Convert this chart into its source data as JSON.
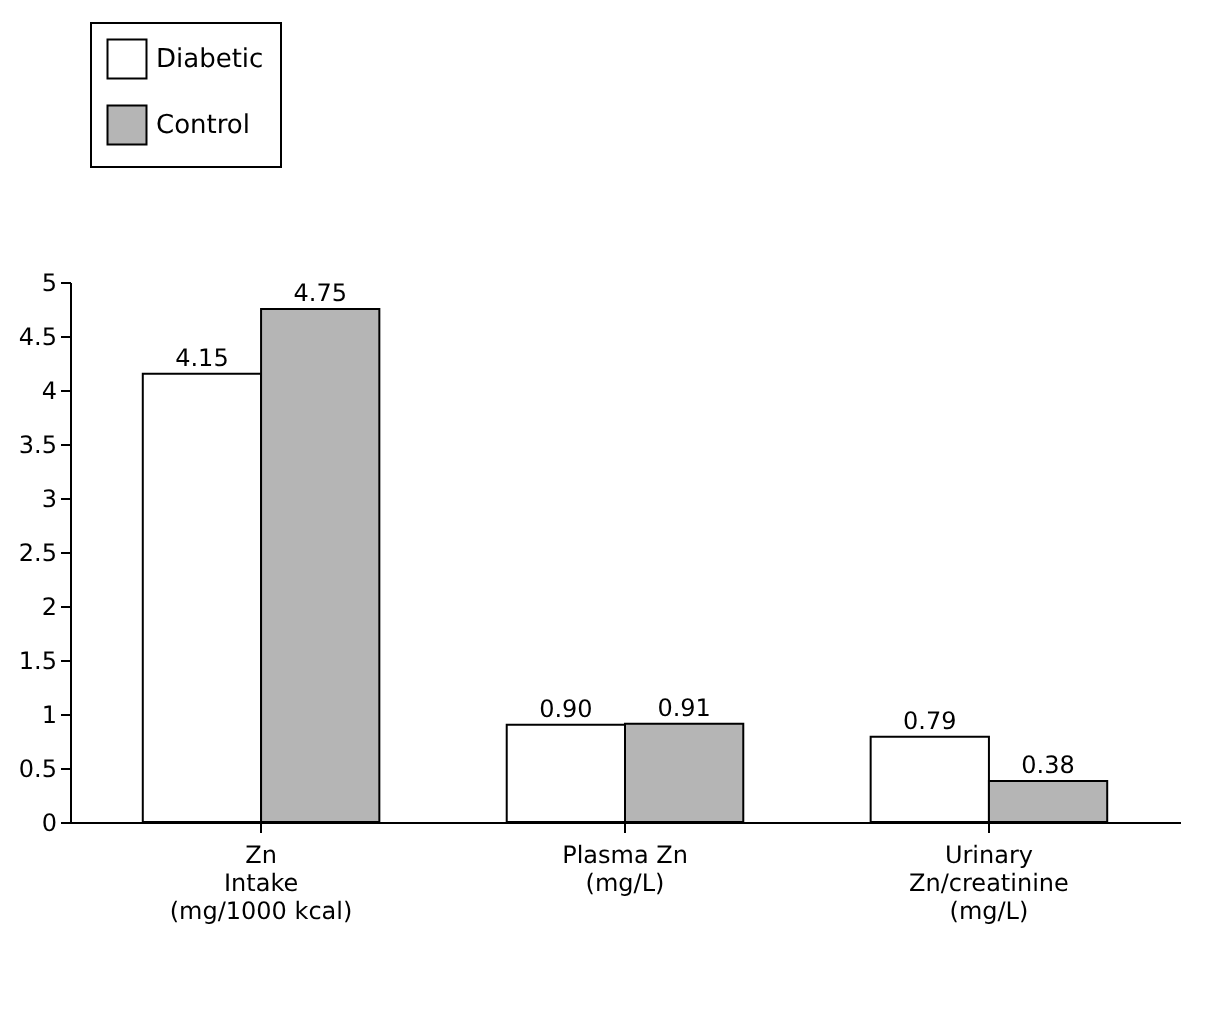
{
  "chart_data": {
    "type": "bar",
    "categories": [
      "Zn\nIntake\n(mg/1000 kcal)",
      "Plasma Zn\n(mg/L)",
      "Urinary\nZn/creatinine\n(mg/L)"
    ],
    "series": [
      {
        "name": "Diabetic",
        "color": "#ffffff",
        "values": [
          4.15,
          0.9,
          0.79
        ],
        "value_labels": [
          "4.15",
          "0.90",
          "0.79"
        ]
      },
      {
        "name": "Control",
        "color": "#b5b5b5",
        "values": [
          4.75,
          0.91,
          0.38
        ],
        "value_labels": [
          "4.75",
          "0.91",
          "0.38"
        ]
      }
    ],
    "ylim": [
      0,
      5
    ],
    "yticks": [
      0,
      0.5,
      1,
      1.5,
      2,
      2.5,
      3,
      3.5,
      4,
      4.5,
      5
    ],
    "legend": "top left"
  }
}
